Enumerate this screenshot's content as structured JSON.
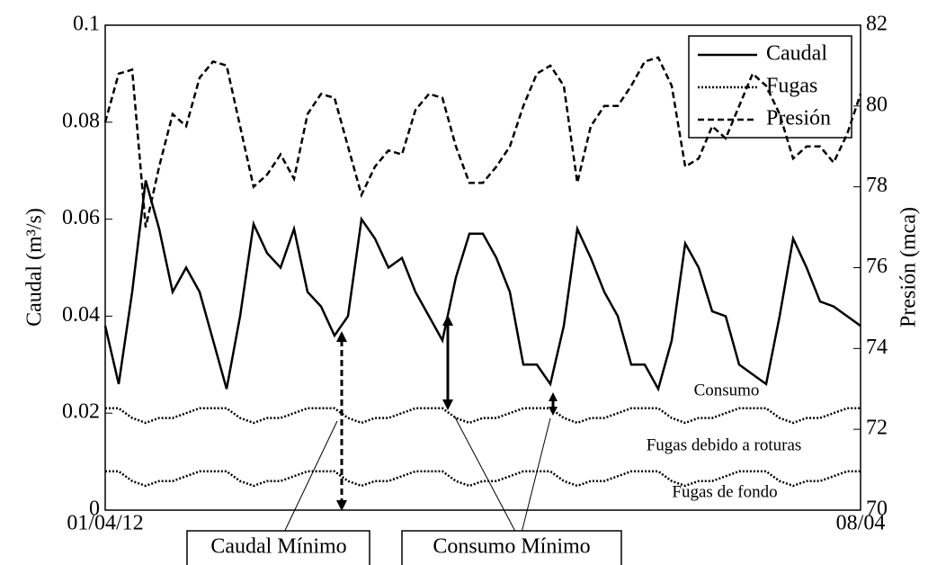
{
  "chart_data": {
    "type": "line",
    "ylabel": "Caudal (m³/s)",
    "y2label": "Presión (mca)",
    "xlim": [
      0,
      7
    ],
    "xticks": [
      {
        "value": 0,
        "label": "01/04/12"
      },
      {
        "value": 7,
        "label": "08/04"
      }
    ],
    "ylim": [
      0,
      0.1
    ],
    "yticks": [
      0,
      0.02,
      0.04,
      0.06,
      0.08,
      0.1
    ],
    "y2lim": [
      70,
      82
    ],
    "y2ticks": [
      70,
      72,
      74,
      76,
      78,
      80,
      82
    ],
    "legend": "upper right",
    "x": [
      0,
      0.125,
      0.25,
      0.375,
      0.5,
      0.625,
      0.75,
      0.875,
      1,
      1.125,
      1.25,
      1.375,
      1.5,
      1.625,
      1.75,
      1.875,
      2,
      2.125,
      2.25,
      2.375,
      2.5,
      2.625,
      2.75,
      2.875,
      3,
      3.125,
      3.25,
      3.375,
      3.5,
      3.625,
      3.75,
      3.875,
      4,
      4.125,
      4.25,
      4.375,
      4.5,
      4.625,
      4.75,
      4.875,
      5,
      5.125,
      5.25,
      5.375,
      5.5,
      5.625,
      5.75,
      5.875,
      6,
      6.125,
      6.25,
      6.375,
      6.5,
      6.625,
      6.75,
      6.875,
      7
    ],
    "series": [
      {
        "name": "Caudal",
        "color": "#000000",
        "dash": "solid",
        "values": [
          0.038,
          0.026,
          0.045,
          0.068,
          0.058,
          0.045,
          0.05,
          0.045,
          0.035,
          0.025,
          0.04,
          0.059,
          0.053,
          0.05,
          0.058,
          0.045,
          0.042,
          0.036,
          0.04,
          0.06,
          0.056,
          0.05,
          0.052,
          0.045,
          0.04,
          0.035,
          0.048,
          0.057,
          0.057,
          0.052,
          0.045,
          0.03,
          0.03,
          0.026,
          0.038,
          0.058,
          0.052,
          0.045,
          0.04,
          0.03,
          0.03,
          0.025,
          0.035,
          0.055,
          0.05,
          0.041,
          0.04,
          0.03,
          0.028,
          0.026,
          0.04,
          0.056,
          0.05,
          0.043,
          0.042,
          0.04,
          0.038
        ]
      },
      {
        "name": "Fugas",
        "color": "#000000",
        "dash": "dotted",
        "values": [
          0.021,
          0.021,
          0.019,
          0.018,
          0.019,
          0.019,
          0.02,
          0.021,
          0.021,
          0.021,
          0.019,
          0.018,
          0.019,
          0.019,
          0.02,
          0.021,
          0.021,
          0.021,
          0.019,
          0.018,
          0.019,
          0.019,
          0.02,
          0.021,
          0.021,
          0.021,
          0.019,
          0.018,
          0.019,
          0.019,
          0.02,
          0.021,
          0.021,
          0.021,
          0.019,
          0.018,
          0.019,
          0.019,
          0.02,
          0.021,
          0.021,
          0.021,
          0.019,
          0.018,
          0.019,
          0.019,
          0.02,
          0.021,
          0.021,
          0.021,
          0.019,
          0.018,
          0.019,
          0.019,
          0.02,
          0.021,
          0.021
        ]
      },
      {
        "color": "#000000",
        "dash": "dotted",
        "values": [
          0.008,
          0.008,
          0.006,
          0.005,
          0.006,
          0.006,
          0.007,
          0.008,
          0.008,
          0.008,
          0.006,
          0.005,
          0.006,
          0.006,
          0.007,
          0.008,
          0.008,
          0.008,
          0.006,
          0.005,
          0.006,
          0.006,
          0.007,
          0.008,
          0.008,
          0.008,
          0.006,
          0.005,
          0.006,
          0.006,
          0.007,
          0.008,
          0.008,
          0.008,
          0.006,
          0.005,
          0.006,
          0.006,
          0.007,
          0.008,
          0.008,
          0.008,
          0.006,
          0.005,
          0.006,
          0.006,
          0.007,
          0.008,
          0.008,
          0.008,
          0.006,
          0.005,
          0.006,
          0.006,
          0.007,
          0.008,
          0.008
        ]
      },
      {
        "name": "Presión",
        "color": "#000000",
        "dash": "dashed",
        "axis": "y2",
        "values": [
          79.6,
          80.8,
          80.9,
          77,
          78.5,
          79.8,
          79.5,
          80.7,
          81.1,
          81,
          79.5,
          78,
          78.3,
          78.8,
          78.2,
          79.8,
          80.3,
          80.2,
          79,
          77.8,
          78.5,
          78.9,
          78.8,
          79.9,
          80.3,
          80.2,
          79,
          78.1,
          78.1,
          78.5,
          79,
          80,
          80.8,
          81,
          80.5,
          78.1,
          79.5,
          80,
          80,
          80.5,
          81.1,
          81.2,
          80.5,
          78.5,
          78.7,
          79.5,
          79.2,
          80,
          80.8,
          80.5,
          79.8,
          78.7,
          79,
          79,
          78.6,
          79.3,
          80.3
        ]
      }
    ],
    "annotations": [
      "Consumo",
      "Fugas debido a roturas",
      "Fugas de fondo",
      "Caudal Mínimo",
      "Consumo Mínimo"
    ]
  }
}
